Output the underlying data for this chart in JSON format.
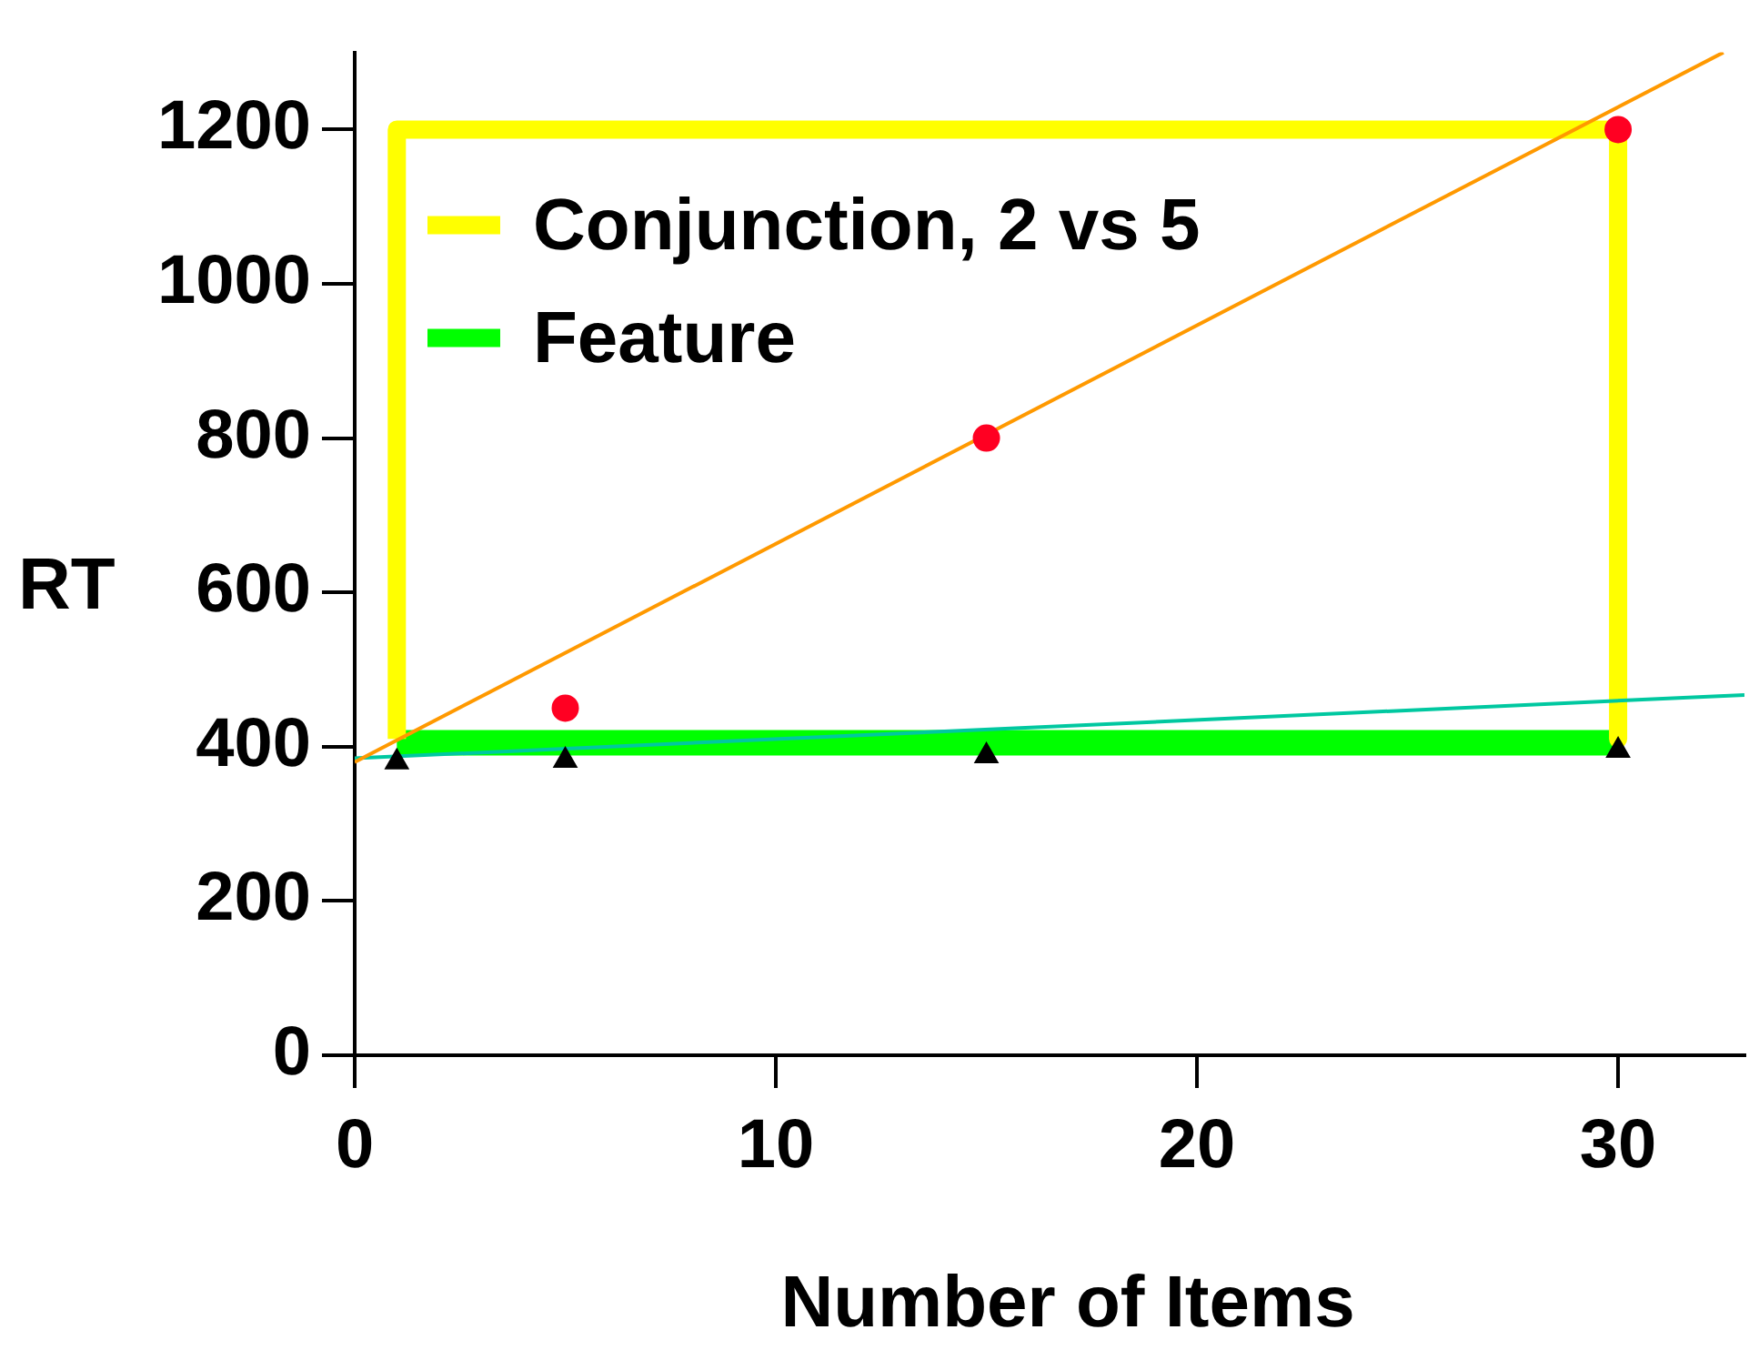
{
  "chart_data": {
    "type": "line",
    "xlabel": "Number of Items",
    "ylabel": "RT",
    "xlim": [
      0,
      33
    ],
    "xticks": [
      0,
      10,
      20,
      30
    ],
    "ylim": [
      0,
      1300
    ],
    "yticks": [
      0,
      200,
      400,
      600,
      800,
      1000,
      1200
    ],
    "grid": false,
    "legend": "top left",
    "series": [
      {
        "name": "Conjunction, 2 vs 5",
        "color": "#ffff00",
        "marker": "none",
        "x": [
          1,
          1,
          30,
          30
        ],
        "values": [
          410,
          1200,
          1200,
          410
        ]
      },
      {
        "name": "Feature",
        "color": "#00ff00",
        "marker": "none",
        "x": [
          1,
          30
        ],
        "values": [
          405,
          405
        ]
      },
      {
        "type": "scatter",
        "color": "#ff0022",
        "marker": "circle",
        "x": [
          5,
          15,
          30
        ],
        "values": [
          450,
          800,
          1200
        ]
      },
      {
        "type": "scatter",
        "color": "#000000",
        "marker": "triangle",
        "x": [
          1,
          5,
          15,
          30
        ],
        "values": [
          380,
          382,
          388,
          395
        ]
      },
      {
        "color": "#ff9900",
        "marker": "none",
        "x": [
          0,
          32.5
        ],
        "values": [
          380,
          1300
        ]
      },
      {
        "color": "#00c8a0",
        "marker": "none",
        "x": [
          0,
          33
        ],
        "values": [
          385,
          467
        ]
      }
    ]
  }
}
